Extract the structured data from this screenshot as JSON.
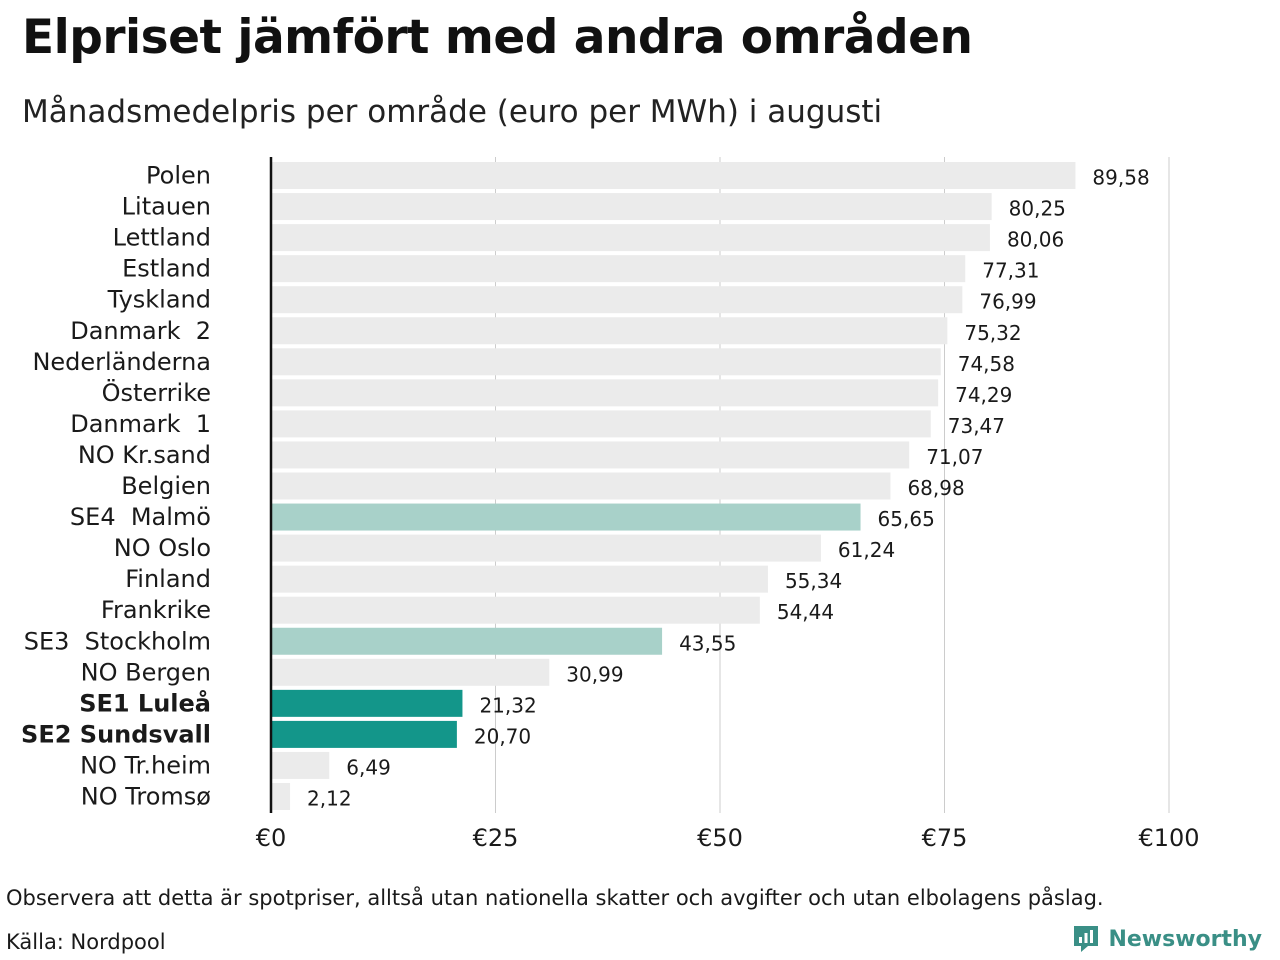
{
  "header": {
    "title": "Elpriset jämfört med andra områden",
    "subtitle": "Månadsmedelpris per område (euro per MWh) i augusti"
  },
  "footer": {
    "note": "Observera att detta är spotpriser, alltså utan nationella skatter och avgifter och utan elbolagens påslag.",
    "source": "Källa: Nordpool",
    "brand": "Newsworthy",
    "brand_icon": "newsworthy-logo-icon"
  },
  "colors": {
    "default_bar": "#ebebeb",
    "highlight_light": "#a8d1c9",
    "highlight_dark": "#13968a",
    "axis": "#111111",
    "grid": "#cccccc",
    "brand": "#3a8f86"
  },
  "chart_data": {
    "type": "bar",
    "orientation": "horizontal",
    "categories": [
      "Polen",
      "Litauen",
      "Lettland",
      "Estland",
      "Tyskland",
      "Danmark  2",
      "Nederländerna",
      "Österrike",
      "Danmark  1",
      "NO Kr.sand",
      "Belgien",
      "SE4  Malmö",
      "NO Oslo",
      "Finland",
      "Frankrike",
      "SE3  Stockholm",
      "NO Bergen",
      "SE1 Luleå",
      "SE2 Sundsvall",
      "NO Tr.heim",
      "NO Tromsø"
    ],
    "values": [
      89.58,
      80.25,
      80.06,
      77.31,
      76.99,
      75.32,
      74.58,
      74.29,
      73.47,
      71.07,
      68.98,
      65.65,
      61.24,
      55.34,
      54.44,
      43.55,
      30.99,
      21.32,
      20.7,
      6.49,
      2.12
    ],
    "value_labels": [
      "89,58",
      "80,25",
      "80,06",
      "77,31",
      "76,99",
      "75,32",
      "74,58",
      "74,29",
      "73,47",
      "71,07",
      "68,98",
      "65,65",
      "61,24",
      "55,34",
      "54,44",
      "43,55",
      "30,99",
      "21,32",
      "20,70",
      "6,49",
      "2,12"
    ],
    "highlight": [
      "none",
      "none",
      "none",
      "none",
      "none",
      "none",
      "none",
      "none",
      "none",
      "none",
      "none",
      "light",
      "none",
      "none",
      "none",
      "light",
      "none",
      "dark",
      "dark",
      "none",
      "none"
    ],
    "bold_labels": [
      "SE1 Luleå",
      "SE2 Sundsvall"
    ],
    "xlim": [
      0,
      100
    ],
    "xticks": [
      0,
      25,
      50,
      75,
      100
    ],
    "xtick_labels": [
      "€0",
      "€25",
      "€50",
      "€75",
      "€100"
    ],
    "grid": true,
    "legend": "none"
  }
}
